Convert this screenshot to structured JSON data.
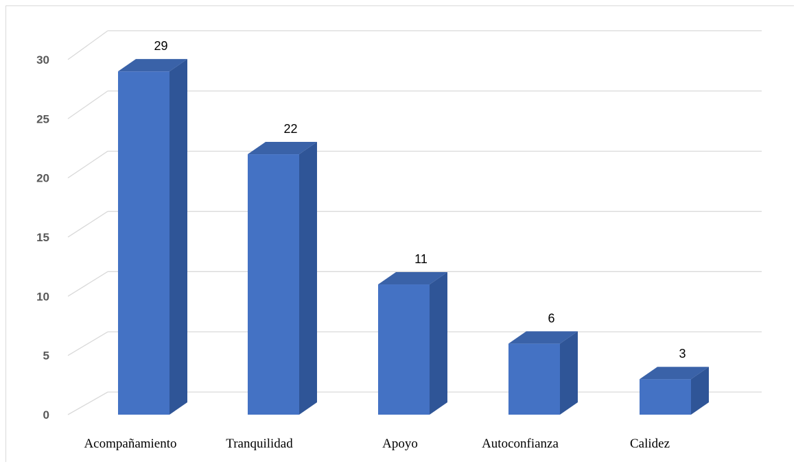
{
  "chart_data": {
    "type": "bar",
    "style": "3d-column",
    "categories": [
      "Acompañamiento",
      "Tranquilidad",
      "Apoyo",
      "Autoconfianza",
      "Calidez"
    ],
    "values": [
      29,
      22,
      11,
      6,
      3
    ],
    "data_labels": [
      "29",
      "22",
      "11",
      "6",
      "3"
    ],
    "ylim": [
      0,
      30
    ],
    "y_ticks": [
      "0",
      "5",
      "10",
      "15",
      "20",
      "25",
      "30"
    ],
    "grid": true,
    "legend": "none",
    "colors": {
      "bar_front": "#4472c4",
      "bar_side": "#2f5597",
      "bar_top": "#3a62a8",
      "grid": "#d9d9d9"
    }
  }
}
